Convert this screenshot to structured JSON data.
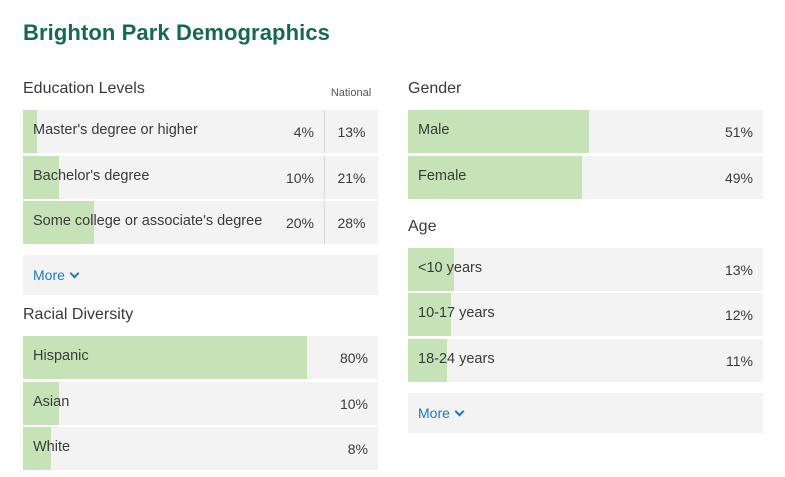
{
  "title": "Brighton Park Demographics",
  "accent_color": "#166a4c",
  "bar_color": "#c5e3b7",
  "link_color": "#1f78c1",
  "education": {
    "heading": "Education Levels",
    "national_heading": "National",
    "rows": [
      {
        "label": "Master's degree or higher",
        "value": "4%",
        "fraction": 0.04,
        "national": "13%"
      },
      {
        "label": "Bachelor's degree",
        "value": "10%",
        "fraction": 0.1,
        "national": "21%"
      },
      {
        "label": "Some college or associate's degree",
        "value": "20%",
        "fraction": 0.2,
        "national": "28%"
      }
    ],
    "more_label": "More"
  },
  "racial": {
    "heading": "Racial Diversity",
    "rows": [
      {
        "label": "Hispanic",
        "value": "80%",
        "fraction": 0.8
      },
      {
        "label": "Asian",
        "value": "10%",
        "fraction": 0.1
      },
      {
        "label": "White",
        "value": "8%",
        "fraction": 0.08
      }
    ]
  },
  "gender": {
    "heading": "Gender",
    "rows": [
      {
        "label": "Male",
        "value": "51%",
        "fraction": 0.51
      },
      {
        "label": "Female",
        "value": "49%",
        "fraction": 0.49
      }
    ]
  },
  "age": {
    "heading": "Age",
    "rows": [
      {
        "label": "<10 years",
        "value": "13%",
        "fraction": 0.13
      },
      {
        "label": "10-17 years",
        "value": "12%",
        "fraction": 0.12
      },
      {
        "label": "18-24 years",
        "value": "11%",
        "fraction": 0.11
      }
    ],
    "more_label": "More"
  }
}
